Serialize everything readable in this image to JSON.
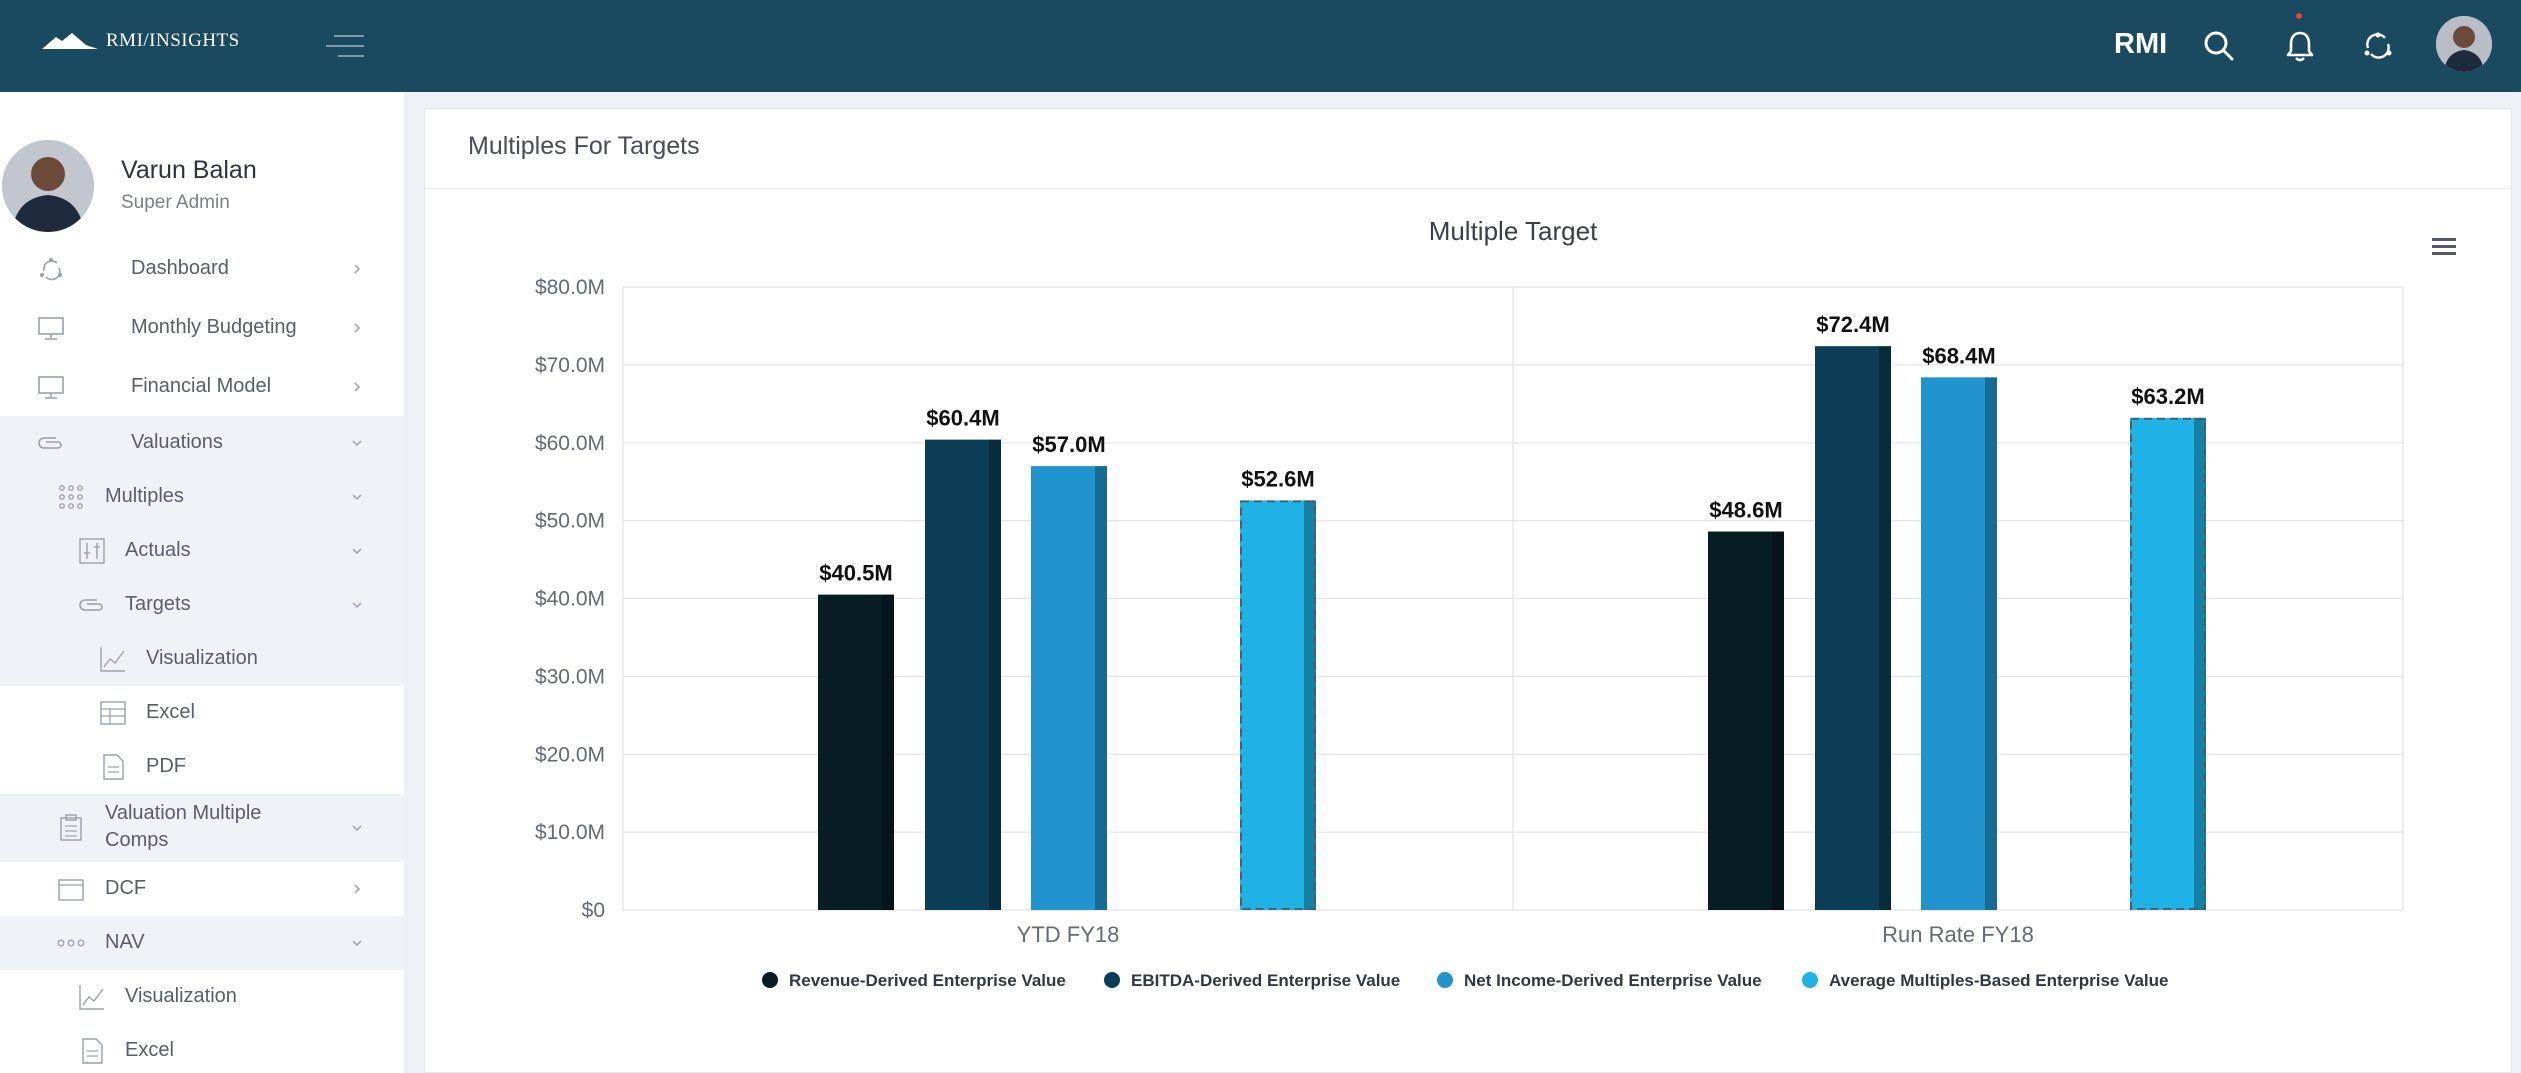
{
  "topbar": {
    "logo_text": "RMI/INSIGHTS",
    "brand_label": "RMI",
    "icons": [
      "menu-toggle-icon",
      "search-icon",
      "bell-icon",
      "sync-icon"
    ],
    "colors": {
      "background": "#1a4a60",
      "notification_dot": "#e8413b"
    }
  },
  "profile": {
    "name": "Varun Balan",
    "role": "Super Admin"
  },
  "sidebar": {
    "items": [
      {
        "label": "Dashboard",
        "icon": "dashboard-icon",
        "chevron": "right"
      },
      {
        "label": "Monthly Budgeting",
        "icon": "monitor-icon",
        "chevron": "right"
      },
      {
        "label": "Financial Model",
        "icon": "monitor-icon",
        "chevron": "right"
      },
      {
        "label": "Valuations",
        "icon": "paperclip-icon",
        "chevron": "down"
      },
      {
        "label": "Multiples",
        "icon": "grid-dots-icon",
        "chevron": "down"
      },
      {
        "label": "Actuals",
        "icon": "sliders-icon",
        "chevron": "down"
      },
      {
        "label": "Targets",
        "icon": "paperclip-icon",
        "chevron": "down"
      },
      {
        "label": "Visualization",
        "icon": "line-chart-icon"
      },
      {
        "label": "Excel",
        "icon": "spreadsheet-icon"
      },
      {
        "label": "PDF",
        "icon": "document-icon"
      },
      {
        "label": "Valuation Multiple Comps",
        "icon": "clipboard-icon",
        "chevron": "down"
      },
      {
        "label": "DCF",
        "icon": "window-icon",
        "chevron": "right"
      },
      {
        "label": "NAV",
        "icon": "dots-icon",
        "chevron": "down"
      },
      {
        "label": "Visualization",
        "icon": "line-chart-icon"
      },
      {
        "label": "Excel",
        "icon": "spreadsheet-icon"
      }
    ]
  },
  "main": {
    "card_title": "Multiples For Targets"
  },
  "chart_data": {
    "type": "bar",
    "title": "Multiple Target",
    "categories": [
      "YTD FY18",
      "Run Rate FY18"
    ],
    "series": [
      {
        "name": "Revenue-Derived Enterprise Value",
        "values": [
          40.5,
          48.6
        ],
        "color": "#071d24",
        "labels": [
          "$40.5M",
          "$48.6M"
        ]
      },
      {
        "name": "EBITDA-Derived Enterprise Value",
        "values": [
          60.4,
          72.4
        ],
        "color": "#0b3e55",
        "labels": [
          "$60.4M",
          "$72.4M"
        ]
      },
      {
        "name": "Net Income-Derived Enterprise Value",
        "values": [
          57.0,
          68.4
        ],
        "color": "#2194ce",
        "labels": [
          "$57.0M",
          "$68.4M"
        ]
      },
      {
        "name": "Average Multiples-Based Enterprise Value",
        "values": [
          52.6,
          63.2
        ],
        "color": "#1fb2e4",
        "labels": [
          "$52.6M",
          "$63.2M"
        ],
        "dashed_outline": true
      }
    ],
    "yticks": [
      "$0",
      "$10.0M",
      "$20.0M",
      "$30.0M",
      "$40.0M",
      "$50.0M",
      "$60.0M",
      "$70.0M",
      "$80.0M"
    ],
    "ylim": [
      0,
      80
    ],
    "ylabel": "",
    "xlabel": "",
    "grid": true,
    "legend_position": "bottom"
  }
}
